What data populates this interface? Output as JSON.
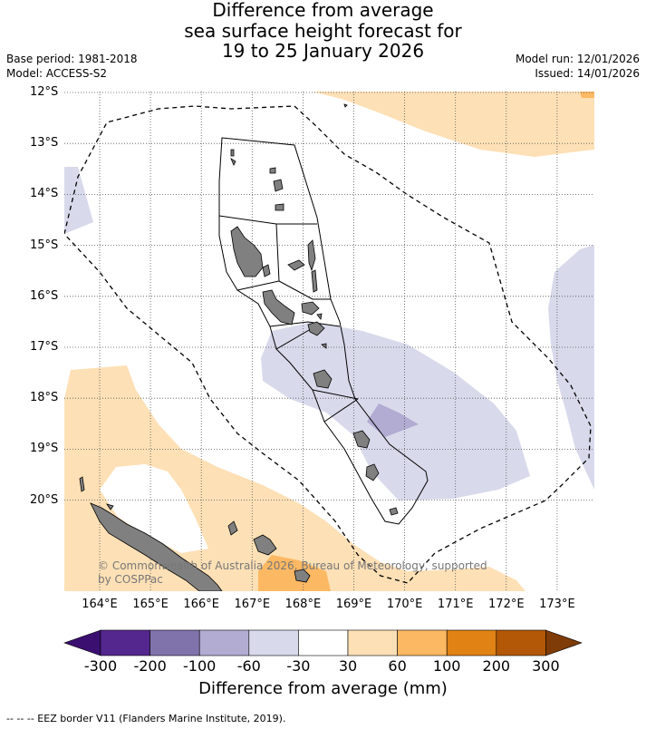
{
  "title": {
    "line1": "Difference from average",
    "line2": "sea surface height forecast for",
    "line3": "19 to 25 January 2026"
  },
  "meta_left": {
    "base_period": "Base period: 1981-2018",
    "model": "Model: ACCESS-S2"
  },
  "meta_right": {
    "model_run": "Model run: 12/01/2026",
    "issued": "Issued: 14/01/2026"
  },
  "latitudes": [
    "12°S",
    "13°S",
    "14°S",
    "15°S",
    "16°S",
    "17°S",
    "18°S",
    "19°S",
    "20°S"
  ],
  "longitudes": [
    "164°E",
    "165°E",
    "166°E",
    "167°E",
    "168°E",
    "169°E",
    "170°E",
    "171°E",
    "172°E",
    "173°E"
  ],
  "copyright": "© Commonwealth of Australia 2026, Bureau of Meteorology, supported by COSPPac",
  "colorbar": {
    "labels": [
      "-300",
      "-200",
      "-100",
      "-60",
      "-30",
      "30",
      "60",
      "100",
      "200",
      "300"
    ],
    "colors": [
      "#3b0f70",
      "#54278f",
      "#8073ac",
      "#b2abd2",
      "#d8daeb",
      "#ffffff",
      "#fee0b6",
      "#fdb863",
      "#e08214",
      "#b35806",
      "#7f3b08"
    ],
    "title": "Difference from average (mm)"
  },
  "footer": "--  --  -- EEZ border V11 (Flanders Marine Institute, 2019).",
  "colors": {
    "land": "#808080",
    "grid": "#555555",
    "eez": "#000000"
  }
}
